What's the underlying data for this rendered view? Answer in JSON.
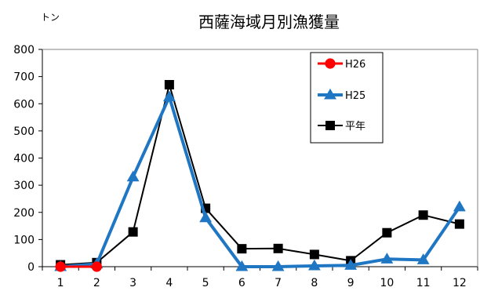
{
  "chart_data": {
    "type": "line",
    "title": "西薩海域月別漁獲量",
    "unit_label": "トン",
    "x": [
      1,
      2,
      3,
      4,
      5,
      6,
      7,
      8,
      9,
      10,
      11,
      12
    ],
    "x_tick_labels": [
      "1",
      "2",
      "3",
      "4",
      "5",
      "6",
      "7",
      "8",
      "9",
      "10",
      "11",
      "12"
    ],
    "ylim": [
      0,
      800
    ],
    "y_ticks": [
      0,
      100,
      200,
      300,
      400,
      500,
      600,
      700,
      800
    ],
    "y_tick_labels": [
      "0",
      "100",
      "200",
      "300",
      "400",
      "500",
      "600",
      "700",
      "800"
    ],
    "grid": false,
    "legend_placement": "top-right",
    "series": [
      {
        "name": "H26",
        "color": "#ff0000",
        "marker": "circle",
        "values": [
          0,
          0,
          null,
          null,
          null,
          null,
          null,
          null,
          null,
          null,
          null,
          null
        ]
      },
      {
        "name": "H25",
        "color": "#1f77c4",
        "marker": "triangle",
        "values": [
          0,
          10,
          330,
          625,
          180,
          0,
          0,
          3,
          5,
          28,
          25,
          220
        ]
      },
      {
        "name": "平年",
        "color": "#000000",
        "marker": "square",
        "values": [
          7,
          15,
          128,
          670,
          215,
          66,
          67,
          45,
          22,
          125,
          190,
          157
        ]
      }
    ]
  }
}
